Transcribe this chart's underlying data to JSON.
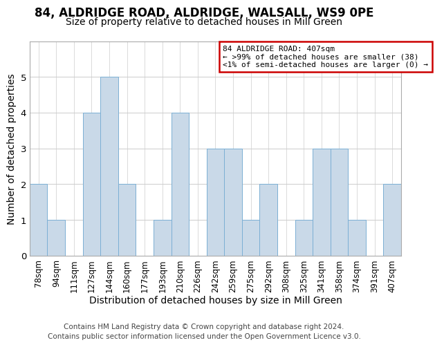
{
  "title": "84, ALDRIDGE ROAD, ALDRIDGE, WALSALL, WS9 0PE",
  "subtitle": "Size of property relative to detached houses in Mill Green",
  "xlabel": "Distribution of detached houses by size in Mill Green",
  "ylabel": "Number of detached properties",
  "footer1": "Contains HM Land Registry data © Crown copyright and database right 2024.",
  "footer2": "Contains public sector information licensed under the Open Government Licence v3.0.",
  "categories": [
    "78sqm",
    "94sqm",
    "111sqm",
    "127sqm",
    "144sqm",
    "160sqm",
    "177sqm",
    "193sqm",
    "210sqm",
    "226sqm",
    "242sqm",
    "259sqm",
    "275sqm",
    "292sqm",
    "308sqm",
    "325sqm",
    "341sqm",
    "358sqm",
    "374sqm",
    "391sqm",
    "407sqm"
  ],
  "values": [
    2,
    1,
    0,
    4,
    5,
    2,
    0,
    1,
    4,
    0,
    3,
    3,
    1,
    2,
    0,
    1,
    3,
    3,
    1,
    0,
    2
  ],
  "bar_color": "#c9d9e8",
  "bar_edge_color": "#7bafd4",
  "annotation_line1": "84 ALDRIDGE ROAD: 407sqm",
  "annotation_line2": "← >99% of detached houses are smaller (38)",
  "annotation_line3": "<1% of semi-detached houses are larger (0) →",
  "annotation_box_edge": "#cc0000",
  "ylim": [
    0,
    6
  ],
  "yticks": [
    0,
    1,
    2,
    3,
    4,
    5,
    6
  ],
  "bg_color": "#ffffff",
  "grid_color": "#cccccc",
  "title_fontsize": 12,
  "subtitle_fontsize": 10,
  "axis_label_fontsize": 10,
  "tick_fontsize": 8.5,
  "footer_fontsize": 7.5
}
